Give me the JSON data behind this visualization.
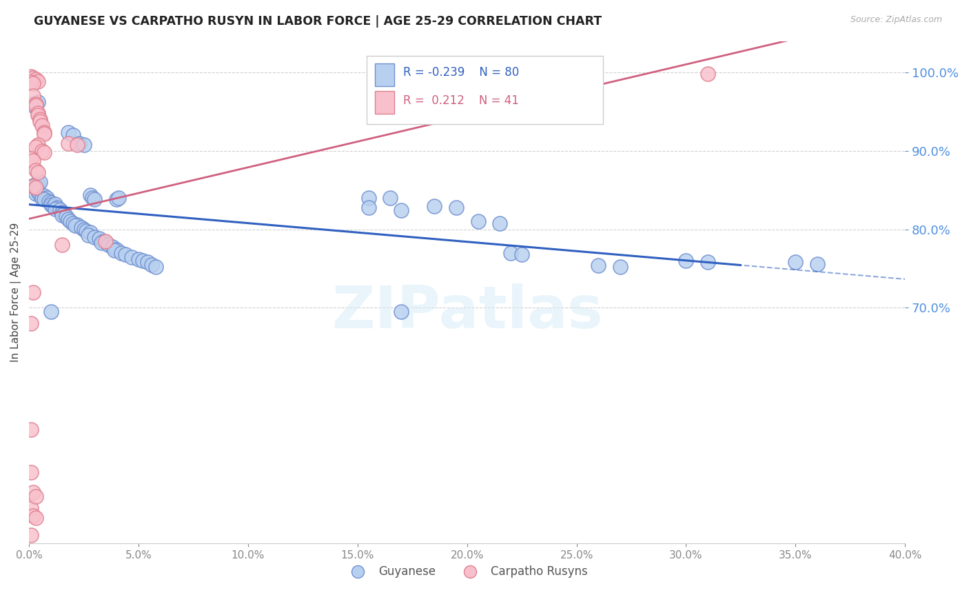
{
  "title": "GUYANESE VS CARPATHO RUSYN IN LABOR FORCE | AGE 25-29 CORRELATION CHART",
  "source": "Source: ZipAtlas.com",
  "ylabel": "In Labor Force | Age 25-29",
  "r_blue": -0.239,
  "n_blue": 80,
  "r_pink": 0.212,
  "n_pink": 41,
  "xlim": [
    0.0,
    0.4
  ],
  "ylim": [
    0.4,
    1.04
  ],
  "yticks": [
    0.7,
    0.8,
    0.9,
    1.0
  ],
  "xticks": [
    0.0,
    0.05,
    0.1,
    0.15,
    0.2,
    0.25,
    0.3,
    0.35,
    0.4
  ],
  "blue_line_color": "#3060C0",
  "pink_line_color": "#D06080",
  "blue_fill_color": "#B8D0F0",
  "pink_fill_color": "#F8C0CC",
  "blue_edge_color": "#7090D0",
  "pink_edge_color": "#E08090",
  "watermark": "ZIPatlas",
  "bg_color": "#FFFFFF",
  "grid_color": "#D0D0D0",
  "right_tick_color": "#5090E0",
  "title_color": "#222222",
  "source_color": "#AAAAAA",
  "blue_dots": [
    [
      0.002,
      0.96
    ],
    [
      0.002,
      0.958
    ],
    [
      0.004,
      0.962
    ],
    [
      0.002,
      0.856
    ],
    [
      0.003,
      0.857
    ],
    [
      0.004,
      0.859
    ],
    [
      0.005,
      0.86
    ],
    [
      0.003,
      0.845
    ],
    [
      0.004,
      0.848
    ],
    [
      0.005,
      0.844
    ],
    [
      0.006,
      0.842
    ],
    [
      0.007,
      0.843
    ],
    [
      0.006,
      0.839
    ],
    [
      0.008,
      0.84
    ],
    [
      0.007,
      0.838
    ],
    [
      0.009,
      0.836
    ],
    [
      0.01,
      0.834
    ],
    [
      0.01,
      0.831
    ],
    [
      0.011,
      0.83
    ],
    [
      0.012,
      0.832
    ],
    [
      0.013,
      0.828
    ],
    [
      0.012,
      0.826
    ],
    [
      0.014,
      0.825
    ],
    [
      0.015,
      0.822
    ],
    [
      0.016,
      0.82
    ],
    [
      0.015,
      0.818
    ],
    [
      0.017,
      0.816
    ],
    [
      0.018,
      0.813
    ],
    [
      0.019,
      0.81
    ],
    [
      0.02,
      0.808
    ],
    [
      0.022,
      0.806
    ],
    [
      0.021,
      0.805
    ],
    [
      0.024,
      0.802
    ],
    [
      0.025,
      0.8
    ],
    [
      0.026,
      0.798
    ],
    [
      0.028,
      0.796
    ],
    [
      0.027,
      0.793
    ],
    [
      0.03,
      0.79
    ],
    [
      0.032,
      0.788
    ],
    [
      0.034,
      0.785
    ],
    [
      0.033,
      0.783
    ],
    [
      0.036,
      0.78
    ],
    [
      0.038,
      0.778
    ],
    [
      0.018,
      0.924
    ],
    [
      0.02,
      0.92
    ],
    [
      0.023,
      0.91
    ],
    [
      0.025,
      0.908
    ],
    [
      0.028,
      0.844
    ],
    [
      0.029,
      0.84
    ],
    [
      0.03,
      0.838
    ],
    [
      0.04,
      0.838
    ],
    [
      0.041,
      0.84
    ],
    [
      0.155,
      0.84
    ],
    [
      0.165,
      0.84
    ],
    [
      0.185,
      0.83
    ],
    [
      0.195,
      0.828
    ],
    [
      0.205,
      0.81
    ],
    [
      0.215,
      0.808
    ],
    [
      0.22,
      0.77
    ],
    [
      0.225,
      0.768
    ],
    [
      0.26,
      0.754
    ],
    [
      0.27,
      0.752
    ],
    [
      0.155,
      0.828
    ],
    [
      0.17,
      0.824
    ],
    [
      0.3,
      0.76
    ],
    [
      0.31,
      0.758
    ],
    [
      0.35,
      0.758
    ],
    [
      0.36,
      0.756
    ],
    [
      0.01,
      0.695
    ],
    [
      0.17,
      0.695
    ],
    [
      0.04,
      0.774
    ],
    [
      0.039,
      0.773
    ],
    [
      0.042,
      0.77
    ],
    [
      0.044,
      0.768
    ],
    [
      0.047,
      0.765
    ],
    [
      0.05,
      0.762
    ],
    [
      0.052,
      0.76
    ],
    [
      0.054,
      0.758
    ],
    [
      0.056,
      0.755
    ],
    [
      0.058,
      0.752
    ]
  ],
  "pink_dots": [
    [
      0.001,
      0.995
    ],
    [
      0.002,
      0.993
    ],
    [
      0.003,
      0.991
    ],
    [
      0.004,
      0.989
    ],
    [
      0.001,
      0.988
    ],
    [
      0.002,
      0.986
    ],
    [
      0.002,
      0.97
    ],
    [
      0.003,
      0.96
    ],
    [
      0.003,
      0.958
    ],
    [
      0.004,
      0.948
    ],
    [
      0.004,
      0.946
    ],
    [
      0.005,
      0.94
    ],
    [
      0.005,
      0.938
    ],
    [
      0.006,
      0.932
    ],
    [
      0.007,
      0.924
    ],
    [
      0.007,
      0.922
    ],
    [
      0.004,
      0.908
    ],
    [
      0.003,
      0.905
    ],
    [
      0.006,
      0.9
    ],
    [
      0.007,
      0.898
    ],
    [
      0.001,
      0.89
    ],
    [
      0.002,
      0.888
    ],
    [
      0.003,
      0.875
    ],
    [
      0.004,
      0.873
    ],
    [
      0.002,
      0.855
    ],
    [
      0.003,
      0.853
    ],
    [
      0.018,
      0.91
    ],
    [
      0.022,
      0.908
    ],
    [
      0.015,
      0.78
    ],
    [
      0.035,
      0.785
    ],
    [
      0.001,
      0.68
    ],
    [
      0.002,
      0.72
    ],
    [
      0.001,
      0.545
    ],
    [
      0.001,
      0.49
    ],
    [
      0.31,
      0.998
    ],
    [
      0.001,
      0.445
    ],
    [
      0.001,
      0.41
    ],
    [
      0.002,
      0.465
    ],
    [
      0.003,
      0.46
    ],
    [
      0.002,
      0.435
    ],
    [
      0.003,
      0.432
    ]
  ]
}
